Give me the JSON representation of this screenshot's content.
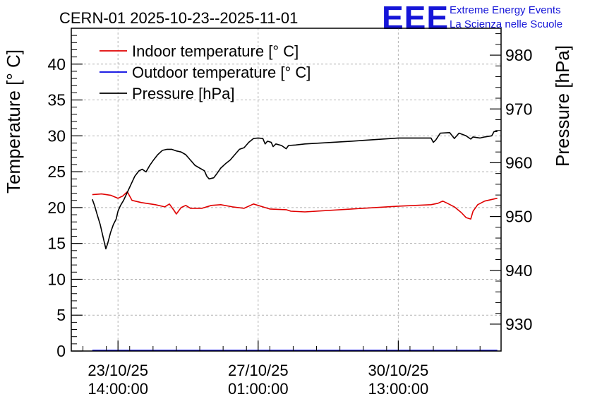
{
  "chart_data": {
    "type": "line",
    "title": "CERN-01 2025-10-23--2025-11-01",
    "ylabel": "Temperature [° C]",
    "y2label": "Pressure [hPa]",
    "ylim": [
      0,
      45
    ],
    "y2lim": [
      925,
      985
    ],
    "xlim": [
      0,
      9.2
    ],
    "yticks": [
      "0",
      "5",
      "10",
      "15",
      "20",
      "25",
      "30",
      "35",
      "40"
    ],
    "y2ticks": [
      "930",
      "940",
      "950",
      "960",
      "970",
      "980"
    ],
    "xticks": [
      {
        "x": 1.0,
        "line1": "23/10/25",
        "line2": "14:00:00"
      },
      {
        "x": 4.0,
        "line1": "27/10/25",
        "line2": "01:00:00"
      },
      {
        "x": 7.0,
        "line1": "30/10/25",
        "line2": "13:00:00"
      }
    ],
    "grid": true,
    "legend_position": "top-left",
    "series": [
      {
        "name": "Indoor temperature [° C]",
        "axis": "left",
        "color": "#e00000",
        "points": [
          [
            0.45,
            21.8
          ],
          [
            0.65,
            21.9
          ],
          [
            0.85,
            21.7
          ],
          [
            1.0,
            21.3
          ],
          [
            1.1,
            21.6
          ],
          [
            1.2,
            22.2
          ],
          [
            1.3,
            21.0
          ],
          [
            1.5,
            20.7
          ],
          [
            1.8,
            20.4
          ],
          [
            2.0,
            20.1
          ],
          [
            2.1,
            20.5
          ],
          [
            2.2,
            19.6
          ],
          [
            2.25,
            19.1
          ],
          [
            2.35,
            20.0
          ],
          [
            2.45,
            20.3
          ],
          [
            2.55,
            19.9
          ],
          [
            2.8,
            19.9
          ],
          [
            3.0,
            20.3
          ],
          [
            3.2,
            20.4
          ],
          [
            3.45,
            20.1
          ],
          [
            3.7,
            19.9
          ],
          [
            3.9,
            20.5
          ],
          [
            4.05,
            20.2
          ],
          [
            4.25,
            19.8
          ],
          [
            4.6,
            19.7
          ],
          [
            4.7,
            19.5
          ],
          [
            5.0,
            19.4
          ],
          [
            6.0,
            19.8
          ],
          [
            7.0,
            20.2
          ],
          [
            7.7,
            20.4
          ],
          [
            7.85,
            20.6
          ],
          [
            7.95,
            20.9
          ],
          [
            8.05,
            20.6
          ],
          [
            8.2,
            20.1
          ],
          [
            8.35,
            19.3
          ],
          [
            8.45,
            18.6
          ],
          [
            8.55,
            18.4
          ],
          [
            8.6,
            19.5
          ],
          [
            8.7,
            20.4
          ],
          [
            8.85,
            20.9
          ],
          [
            9.05,
            21.2
          ],
          [
            9.12,
            21.3
          ]
        ]
      },
      {
        "name": "Outdoor temperature [° C]",
        "axis": "left",
        "color": "#0000e0",
        "points": [
          [
            0.45,
            0.1
          ],
          [
            9.12,
            0.1
          ]
        ]
      },
      {
        "name": "Pressure [hPa]",
        "axis": "right",
        "color": "#000000",
        "points": [
          [
            0.45,
            953.2
          ],
          [
            0.5,
            952.0
          ],
          [
            0.55,
            950.5
          ],
          [
            0.62,
            948.5
          ],
          [
            0.7,
            945.5
          ],
          [
            0.74,
            944.0
          ],
          [
            0.78,
            945.0
          ],
          [
            0.84,
            947.0
          ],
          [
            0.9,
            948.5
          ],
          [
            0.96,
            949.5
          ],
          [
            1.0,
            951.0
          ],
          [
            1.05,
            952.0
          ],
          [
            1.12,
            953.0
          ],
          [
            1.2,
            954.5
          ],
          [
            1.28,
            956.0
          ],
          [
            1.36,
            957.5
          ],
          [
            1.45,
            958.5
          ],
          [
            1.52,
            958.8
          ],
          [
            1.6,
            958.3
          ],
          [
            1.68,
            959.5
          ],
          [
            1.76,
            960.5
          ],
          [
            1.85,
            961.5
          ],
          [
            1.95,
            962.3
          ],
          [
            2.05,
            962.5
          ],
          [
            2.15,
            962.5
          ],
          [
            2.25,
            962.2
          ],
          [
            2.35,
            962.0
          ],
          [
            2.45,
            961.5
          ],
          [
            2.55,
            960.5
          ],
          [
            2.65,
            959.5
          ],
          [
            2.75,
            959.0
          ],
          [
            2.85,
            958.5
          ],
          [
            2.9,
            957.5
          ],
          [
            2.95,
            957.0
          ],
          [
            3.05,
            957.2
          ],
          [
            3.12,
            958.0
          ],
          [
            3.2,
            959.0
          ],
          [
            3.3,
            959.8
          ],
          [
            3.4,
            960.5
          ],
          [
            3.5,
            961.5
          ],
          [
            3.6,
            962.5
          ],
          [
            3.7,
            962.8
          ],
          [
            3.8,
            963.8
          ],
          [
            3.9,
            964.5
          ],
          [
            4.0,
            964.6
          ],
          [
            4.1,
            964.5
          ],
          [
            4.15,
            963.5
          ],
          [
            4.2,
            964.0
          ],
          [
            4.28,
            963.8
          ],
          [
            4.32,
            963.0
          ],
          [
            4.38,
            963.5
          ],
          [
            4.5,
            963.2
          ],
          [
            4.6,
            962.6
          ],
          [
            4.65,
            963.2
          ],
          [
            4.8,
            963.3
          ],
          [
            5.0,
            963.5
          ],
          [
            6.0,
            964.0
          ],
          [
            7.0,
            964.6
          ],
          [
            7.7,
            964.6
          ],
          [
            7.75,
            963.8
          ],
          [
            7.8,
            964.2
          ],
          [
            7.9,
            965.5
          ],
          [
            8.1,
            965.6
          ],
          [
            8.2,
            964.5
          ],
          [
            8.3,
            965.5
          ],
          [
            8.45,
            965.0
          ],
          [
            8.55,
            964.4
          ],
          [
            8.6,
            964.8
          ],
          [
            8.75,
            964.6
          ],
          [
            8.85,
            964.8
          ],
          [
            9.0,
            965.0
          ],
          [
            9.05,
            965.8
          ],
          [
            9.12,
            965.8
          ]
        ]
      }
    ]
  },
  "logo": {
    "text": "EEE",
    "line1": "Extreme Energy Events",
    "line2": "La Scienza nelle Scuole"
  },
  "colors": {
    "logo": "#1515d8",
    "grid": "#b3b3b3",
    "frame": "#000000"
  }
}
